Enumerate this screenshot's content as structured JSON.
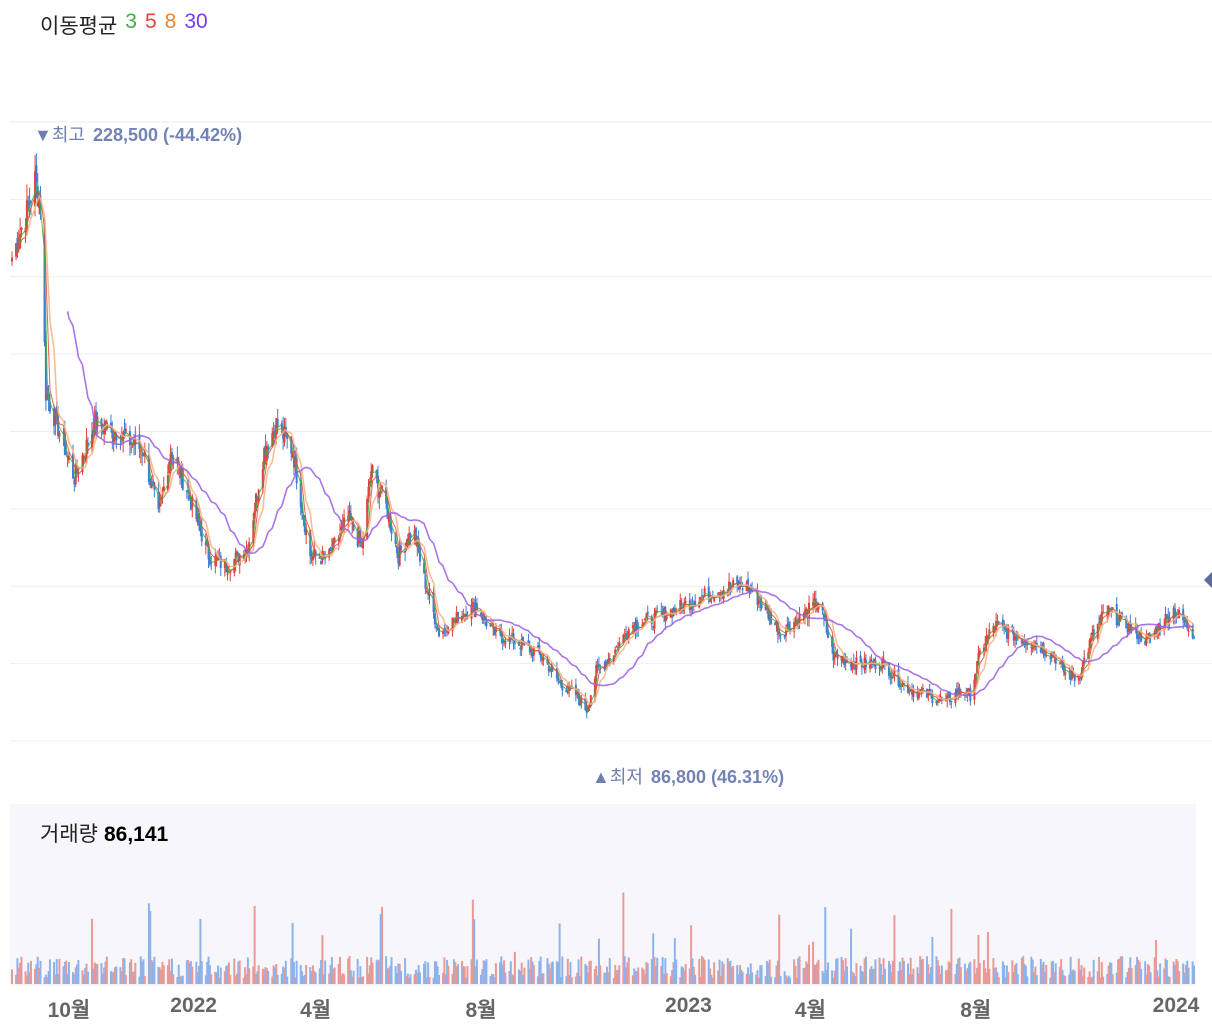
{
  "legend": {
    "title": "이동평균",
    "periods": [
      {
        "label": "3",
        "color": "#3fae3f"
      },
      {
        "label": "5",
        "color": "#e2473b"
      },
      {
        "label": "8",
        "color": "#e9852f"
      },
      {
        "label": "30",
        "color": "#7c3aed"
      }
    ]
  },
  "markers": {
    "high": {
      "symbol": "▼",
      "label": "최고",
      "value": "228,500",
      "pct": "(-44.42%)"
    },
    "low": {
      "symbol": "▲",
      "label": "최저",
      "value": "86,800",
      "pct": "(46.31%)"
    }
  },
  "volume": {
    "label": "거래량",
    "value": "86,141"
  },
  "colors": {
    "up": "#e0413a",
    "down": "#3b7fd6",
    "vol_up": "#e99a96",
    "vol_down": "#8db3ea",
    "ma3": "#3fae3f",
    "ma5": "#e2473b",
    "ma8": "#e9852f",
    "ma30": "#9b5de5",
    "grid": "#eeeeee",
    "marker": "#7383b4"
  },
  "chart_data": {
    "type": "candlestick",
    "x_tick_labels": [
      "10월",
      "2022",
      "4월",
      "8월",
      "2023",
      "4월",
      "8월",
      "2024"
    ],
    "x_tick_dates": [
      "2021-10",
      "2022-01",
      "2022-04",
      "2022-08",
      "2023-01",
      "2023-04",
      "2023-08",
      "2024-01"
    ],
    "price_range": [
      80000,
      240000
    ],
    "price_high": 228500,
    "price_low": 86800,
    "last_volume": 86141,
    "close_trend": [
      [
        "2021-08-20",
        205000
      ],
      [
        "2021-09-01",
        218000
      ],
      [
        "2021-09-06",
        225000
      ],
      [
        "2021-09-10",
        218000
      ],
      [
        "2021-09-14",
        170000
      ],
      [
        "2021-09-24",
        160000
      ],
      [
        "2021-10-05",
        148000
      ],
      [
        "2021-10-20",
        162000
      ],
      [
        "2021-11-05",
        160000
      ],
      [
        "2021-11-25",
        155000
      ],
      [
        "2021-12-06",
        138000
      ],
      [
        "2021-12-15",
        155000
      ],
      [
        "2021-12-27",
        145000
      ],
      [
        "2022-01-12",
        128000
      ],
      [
        "2022-01-25",
        125000
      ],
      [
        "2022-02-10",
        130000
      ],
      [
        "2022-02-22",
        155000
      ],
      [
        "2022-03-03",
        162000
      ],
      [
        "2022-03-15",
        155000
      ],
      [
        "2022-03-28",
        128000
      ],
      [
        "2022-04-10",
        127000
      ],
      [
        "2022-04-25",
        138000
      ],
      [
        "2022-05-05",
        130000
      ],
      [
        "2022-05-12",
        150000
      ],
      [
        "2022-05-22",
        142000
      ],
      [
        "2022-06-01",
        128000
      ],
      [
        "2022-06-12",
        135000
      ],
      [
        "2022-06-20",
        122000
      ],
      [
        "2022-07-01",
        108000
      ],
      [
        "2022-07-15",
        112000
      ],
      [
        "2022-07-28",
        115000
      ],
      [
        "2022-08-10",
        108000
      ],
      [
        "2022-08-25",
        106000
      ],
      [
        "2022-09-15",
        102000
      ],
      [
        "2022-09-28",
        95000
      ],
      [
        "2022-10-10",
        92000
      ],
      [
        "2022-10-18",
        88000
      ],
      [
        "2022-10-25",
        98000
      ],
      [
        "2022-11-05",
        102000
      ],
      [
        "2022-11-20",
        110000
      ],
      [
        "2022-12-10",
        112000
      ],
      [
        "2022-12-28",
        115000
      ],
      [
        "2023-01-15",
        118000
      ],
      [
        "2023-02-01",
        120000
      ],
      [
        "2023-02-14",
        120000
      ],
      [
        "2023-02-25",
        115000
      ],
      [
        "2023-03-10",
        108000
      ],
      [
        "2023-03-25",
        112000
      ],
      [
        "2023-04-07",
        116000
      ],
      [
        "2023-04-18",
        102000
      ],
      [
        "2023-05-05",
        100000
      ],
      [
        "2023-05-25",
        100000
      ],
      [
        "2023-06-10",
        94000
      ],
      [
        "2023-06-25",
        92000
      ],
      [
        "2023-07-10",
        90000
      ],
      [
        "2023-07-20",
        93000
      ],
      [
        "2023-07-28",
        92000
      ],
      [
        "2023-08-05",
        104000
      ],
      [
        "2023-08-15",
        110000
      ],
      [
        "2023-08-25",
        108000
      ],
      [
        "2023-09-15",
        105000
      ],
      [
        "2023-09-28",
        102000
      ],
      [
        "2023-10-05",
        98000
      ],
      [
        "2023-10-15",
        96000
      ],
      [
        "2023-10-25",
        106000
      ],
      [
        "2023-11-05",
        114000
      ],
      [
        "2023-11-20",
        110000
      ],
      [
        "2023-12-05",
        106000
      ],
      [
        "2023-12-15",
        110000
      ],
      [
        "2023-12-25",
        114000
      ],
      [
        "2024-01-08",
        108000
      ]
    ]
  }
}
